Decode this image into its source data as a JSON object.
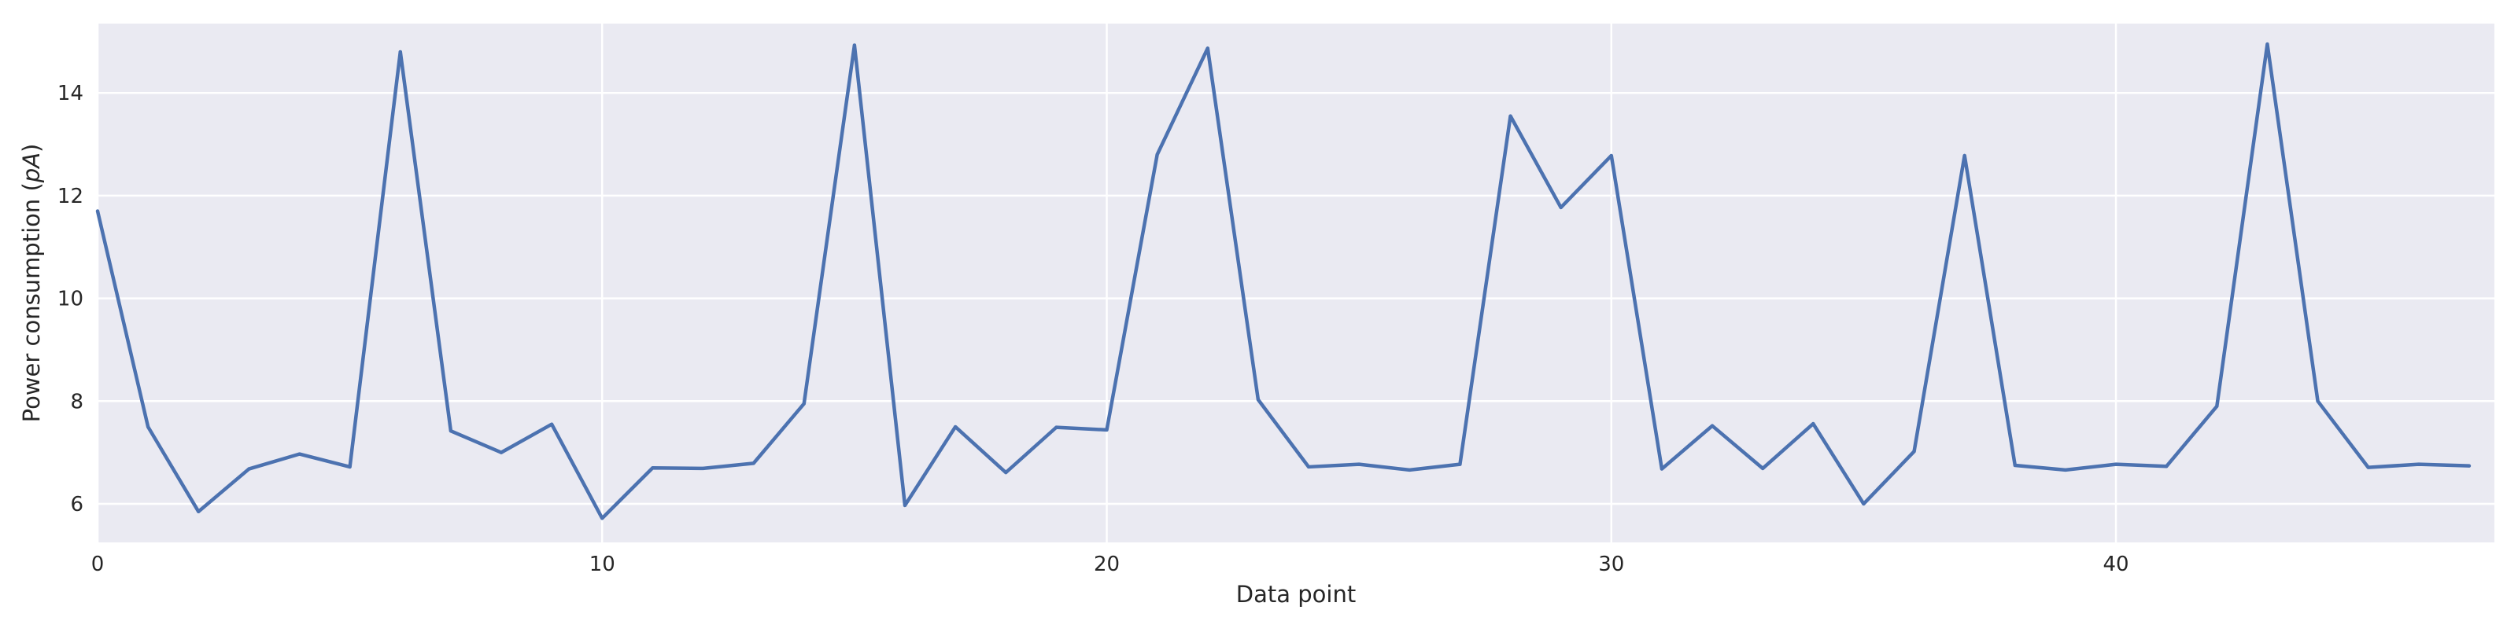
{
  "chart_data": {
    "type": "line",
    "title": "",
    "xlabel": "Data point",
    "ylabel": "Power consumption (pA)",
    "ylabel_parts": {
      "prefix": "Power consumption (",
      "unit": "pA",
      "suffix": ")"
    },
    "xlim": [
      0,
      47.5
    ],
    "ylim": [
      5.25,
      15.35
    ],
    "xticks": [
      0,
      10,
      20,
      30,
      40
    ],
    "xtick_labels": [
      "0",
      "10",
      "20",
      "30",
      "40"
    ],
    "yticks": [
      6,
      8,
      10,
      12,
      14
    ],
    "ytick_labels": [
      "6",
      "8",
      "10",
      "12",
      "14"
    ],
    "grid": true,
    "line_color": "#4c72b0",
    "background_color": "#eaeaf2",
    "series": [
      {
        "values": [
          11.7,
          7.5,
          5.85,
          6.68,
          6.97,
          6.72,
          14.8,
          7.42,
          7.0,
          7.55,
          5.72,
          6.7,
          6.69,
          6.79,
          7.95,
          14.93,
          5.97,
          7.5,
          6.61,
          7.49,
          7.44,
          12.8,
          14.87,
          8.03,
          6.72,
          6.77,
          6.66,
          6.77,
          13.55,
          11.77,
          12.78,
          6.68,
          7.52,
          6.69,
          7.56,
          6.0,
          7.02,
          12.78,
          6.75,
          6.66,
          6.77,
          6.73,
          7.9,
          14.95,
          8.0,
          6.71,
          6.77,
          6.74
        ]
      }
    ]
  }
}
